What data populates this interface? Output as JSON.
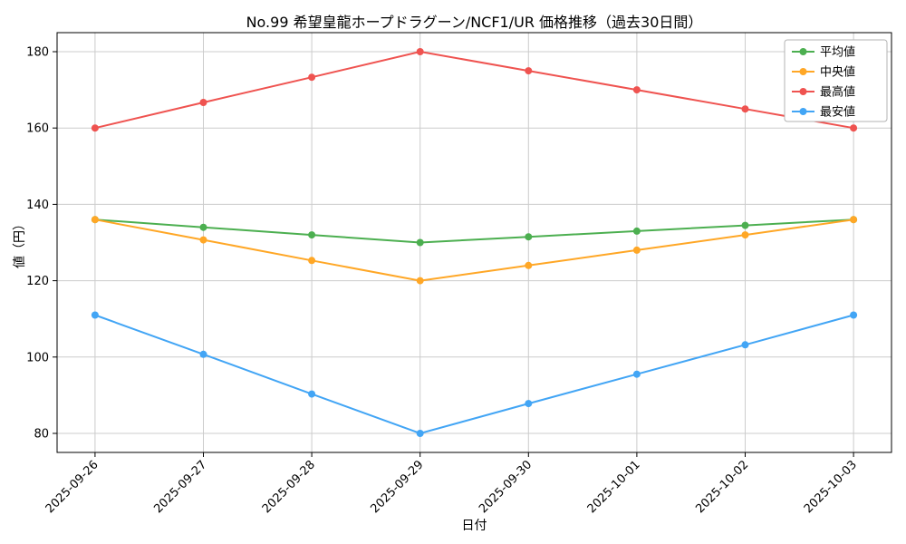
{
  "title": "No.99 希望皇龍ホープドラグーン/NCF1/UR 価格推移（過去30日間）",
  "chart_data": {
    "type": "line",
    "x": [
      "2025-09-26",
      "2025-09-27",
      "2025-09-28",
      "2025-09-29",
      "2025-09-30",
      "2025-10-01",
      "2025-10-02",
      "2025-10-03"
    ],
    "series": [
      {
        "name": "平均値",
        "color": "#4caf50",
        "values": [
          136,
          134,
          132,
          130,
          131.5,
          133,
          134.5,
          136
        ]
      },
      {
        "name": "中央値",
        "color": "#ffa726",
        "values": [
          136,
          130.7,
          125.3,
          120,
          124,
          128,
          132,
          136
        ]
      },
      {
        "name": "最高値",
        "color": "#ef5350",
        "values": [
          160,
          166.7,
          173.3,
          180,
          175,
          170,
          165,
          160
        ]
      },
      {
        "name": "最安値",
        "color": "#42a5f5",
        "values": [
          111,
          100.7,
          90.3,
          80,
          87.8,
          95.5,
          103.2,
          111
        ]
      }
    ],
    "xlabel": "日付",
    "ylabel": "値（円）",
    "yticks": [
      80,
      100,
      120,
      140,
      160,
      180
    ],
    "ylim": [
      75,
      185
    ],
    "grid": true,
    "legend_position": "upper right",
    "plot_background": "#ffffff",
    "grid_color": "#cccccc"
  }
}
